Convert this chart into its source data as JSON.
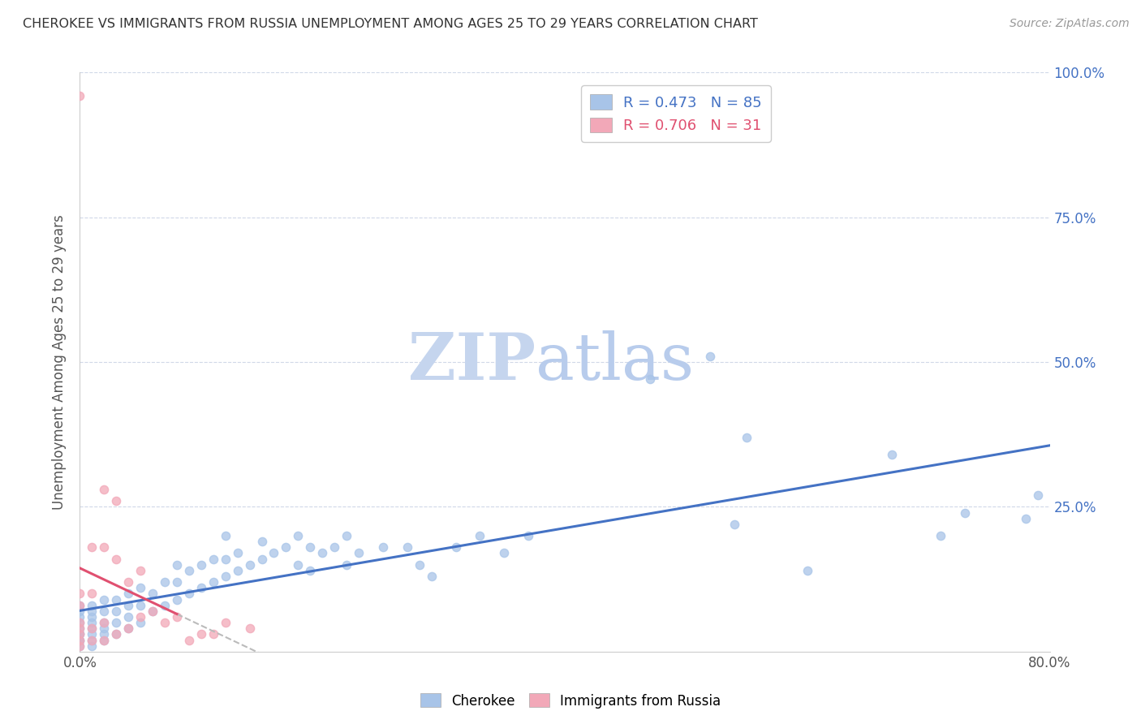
{
  "title": "CHEROKEE VS IMMIGRANTS FROM RUSSIA UNEMPLOYMENT AMONG AGES 25 TO 29 YEARS CORRELATION CHART",
  "source": "Source: ZipAtlas.com",
  "ylabel": "Unemployment Among Ages 25 to 29 years",
  "xlim": [
    0.0,
    0.8
  ],
  "ylim": [
    0.0,
    1.0
  ],
  "cherokee_R": 0.473,
  "cherokee_N": 85,
  "russia_R": 0.706,
  "russia_N": 31,
  "cherokee_color": "#a8c4e8",
  "russia_color": "#f2a8b8",
  "trendline_cherokee_color": "#4472c4",
  "trendline_russia_color": "#e05070",
  "dashed_color": "#bbbbbb",
  "watermark_zip_color": "#ccd9f0",
  "watermark_atlas_color": "#b0c4e8",
  "cherokee_x": [
    0.0,
    0.0,
    0.0,
    0.0,
    0.0,
    0.0,
    0.0,
    0.0,
    0.0,
    0.0,
    0.01,
    0.01,
    0.01,
    0.01,
    0.01,
    0.01,
    0.01,
    0.01,
    0.02,
    0.02,
    0.02,
    0.02,
    0.02,
    0.02,
    0.03,
    0.03,
    0.03,
    0.03,
    0.04,
    0.04,
    0.04,
    0.04,
    0.05,
    0.05,
    0.05,
    0.06,
    0.06,
    0.07,
    0.07,
    0.08,
    0.08,
    0.08,
    0.09,
    0.09,
    0.1,
    0.1,
    0.11,
    0.11,
    0.12,
    0.12,
    0.12,
    0.13,
    0.13,
    0.14,
    0.15,
    0.15,
    0.16,
    0.17,
    0.18,
    0.18,
    0.19,
    0.19,
    0.2,
    0.21,
    0.22,
    0.22,
    0.23,
    0.25,
    0.27,
    0.28,
    0.29,
    0.31,
    0.33,
    0.35,
    0.37,
    0.47,
    0.52,
    0.54,
    0.55,
    0.6,
    0.67,
    0.71,
    0.73,
    0.78,
    0.79
  ],
  "cherokee_y": [
    0.01,
    0.02,
    0.02,
    0.03,
    0.03,
    0.04,
    0.05,
    0.06,
    0.07,
    0.08,
    0.01,
    0.02,
    0.03,
    0.04,
    0.05,
    0.06,
    0.07,
    0.08,
    0.02,
    0.03,
    0.04,
    0.05,
    0.07,
    0.09,
    0.03,
    0.05,
    0.07,
    0.09,
    0.04,
    0.06,
    0.08,
    0.1,
    0.05,
    0.08,
    0.11,
    0.07,
    0.1,
    0.08,
    0.12,
    0.09,
    0.12,
    0.15,
    0.1,
    0.14,
    0.11,
    0.15,
    0.12,
    0.16,
    0.13,
    0.16,
    0.2,
    0.14,
    0.17,
    0.15,
    0.16,
    0.19,
    0.17,
    0.18,
    0.15,
    0.2,
    0.14,
    0.18,
    0.17,
    0.18,
    0.15,
    0.2,
    0.17,
    0.18,
    0.18,
    0.15,
    0.13,
    0.18,
    0.2,
    0.17,
    0.2,
    0.47,
    0.51,
    0.22,
    0.37,
    0.14,
    0.34,
    0.2,
    0.24,
    0.23,
    0.27
  ],
  "russia_x": [
    0.0,
    0.0,
    0.0,
    0.0,
    0.0,
    0.0,
    0.0,
    0.0,
    0.01,
    0.01,
    0.01,
    0.01,
    0.02,
    0.02,
    0.02,
    0.02,
    0.03,
    0.03,
    0.03,
    0.04,
    0.04,
    0.05,
    0.05,
    0.06,
    0.07,
    0.08,
    0.09,
    0.1,
    0.11,
    0.12,
    0.14
  ],
  "russia_y": [
    0.01,
    0.02,
    0.03,
    0.04,
    0.05,
    0.08,
    0.1,
    0.96,
    0.02,
    0.04,
    0.1,
    0.18,
    0.02,
    0.05,
    0.18,
    0.28,
    0.03,
    0.16,
    0.26,
    0.04,
    0.12,
    0.06,
    0.14,
    0.07,
    0.05,
    0.06,
    0.02,
    0.03,
    0.03,
    0.05,
    0.04
  ]
}
